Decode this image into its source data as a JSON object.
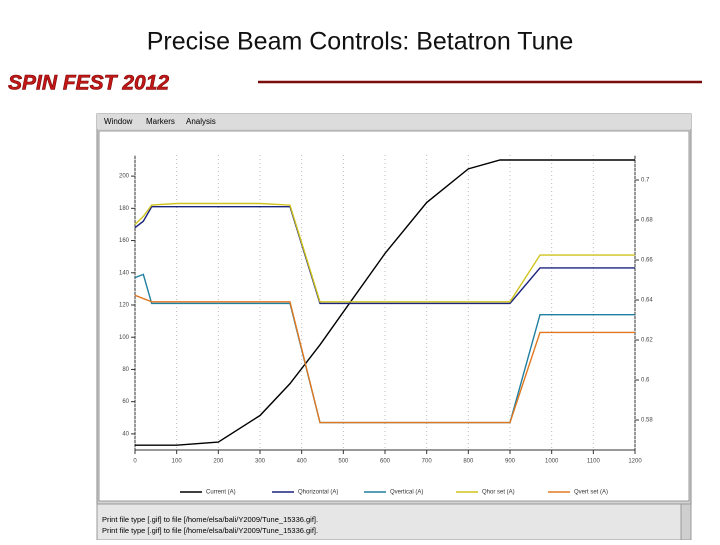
{
  "slide": {
    "title": "Precise Beam Controls: Betatron Tune",
    "brand": "SPIN FEST 2012"
  },
  "window": {
    "menu": [
      "Window",
      "Markers",
      "Analysis"
    ],
    "status": [
      "Print file type [.gif] to file [/home/elsa/bali/Y2009/Tune_15336.gif].",
      "Print file type [.gif] to file [/home/elsa/bali/Y2009/Tune_15336.gif]."
    ]
  },
  "chart_data": {
    "type": "line",
    "x": [
      0,
      20,
      40,
      100,
      200,
      300,
      372,
      444,
      500,
      600,
      700,
      800,
      876,
      900,
      972,
      1000,
      1100,
      1200
    ],
    "xlim": [
      0,
      1200
    ],
    "xticks": [
      0,
      100,
      200,
      300,
      400,
      500,
      600,
      700,
      800,
      900,
      1000,
      1100,
      1200
    ],
    "ylim": [
      30,
      210
    ],
    "yticks": [
      40,
      60,
      80,
      100,
      120,
      140,
      160,
      180,
      200
    ],
    "y2lim": [
      0.565,
      0.71
    ],
    "y2ticks": [
      0.58,
      0.6,
      0.62,
      0.64,
      0.66,
      0.68,
      0.7
    ],
    "series": [
      {
        "name": "Current (A)",
        "color": "#000000",
        "values": [
          33,
          33,
          33,
          33,
          34.9,
          51.4,
          71.2,
          95.3,
          115.7,
          152,
          183.6,
          204.5,
          210,
          210,
          210,
          210,
          210,
          210
        ]
      },
      {
        "name": "Qhorizontal (A)",
        "color": "#1a237e",
        "values": [
          168,
          172,
          181,
          181,
          181,
          181,
          181,
          121,
          121,
          121,
          121,
          121,
          121,
          121,
          143,
          143,
          143,
          143
        ]
      },
      {
        "name": "Qvertical (A)",
        "color": "#1f7fa0",
        "values": [
          137,
          139,
          121,
          121,
          121,
          121,
          121,
          47,
          47,
          47,
          47,
          47,
          47,
          47,
          114,
          114,
          114,
          114
        ]
      },
      {
        "name": "Qhor set (A)",
        "color": "#cfc31e",
        "values": [
          170,
          175,
          182,
          183,
          183,
          183,
          182,
          122,
          122,
          122,
          122,
          122,
          122,
          122,
          151,
          151,
          151,
          151
        ]
      },
      {
        "name": "Qvert set (A)",
        "color": "#e07820",
        "values": [
          126,
          124,
          122,
          122,
          122,
          122,
          122,
          47,
          47,
          47,
          47,
          47,
          47,
          47,
          103,
          103,
          103,
          103
        ]
      }
    ]
  }
}
